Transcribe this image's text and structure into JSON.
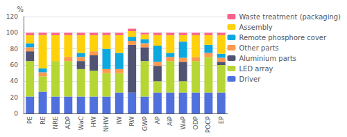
{
  "chart_data": {
    "type": "bar",
    "stacked": true,
    "categories": [
      "PE",
      "RE",
      "NRE",
      "ADP",
      "WaC",
      "HW",
      "NHW",
      "IW",
      "RW",
      "GWP",
      "AP",
      "AiP",
      "WaP",
      "ODP",
      "POCP",
      "EP"
    ],
    "series": [
      {
        "name": "Driver",
        "values": [
          21,
          27,
          21,
          21,
          21,
          21,
          21,
          26,
          26,
          21,
          26,
          26,
          26,
          26,
          26,
          26
        ]
      },
      {
        "name": "LED array",
        "values": [
          44,
          19,
          44,
          44,
          34,
          32,
          29,
          24,
          0,
          44,
          14,
          39,
          14,
          39,
          44,
          34
        ]
      },
      {
        "name": "Aluminium parts",
        "values": [
          12,
          0,
          0,
          0,
          10,
          19,
          0,
          0,
          59,
          17,
          19,
          0,
          24,
          0,
          0,
          4
        ]
      },
      {
        "name": "Other parts",
        "values": [
          5,
          5,
          0,
          5,
          5,
          5,
          5,
          5,
          5,
          5,
          5,
          5,
          5,
          5,
          5,
          5
        ]
      },
      {
        "name": "Remote phosphore cover",
        "values": [
          5,
          5,
          0,
          0,
          5,
          0,
          25,
          20,
          5,
          5,
          20,
          5,
          20,
          0,
          10,
          5
        ]
      },
      {
        "name": "Assembly",
        "values": [
          10,
          41,
          32,
          27,
          22,
          20,
          17,
          22,
          7,
          6,
          13,
          22,
          8,
          27,
          12,
          23
        ]
      },
      {
        "name": "Waste treatment (packaging)",
        "values": [
          3,
          3,
          3,
          3,
          3,
          3,
          3,
          3,
          3,
          2,
          3,
          3,
          3,
          3,
          3,
          3
        ]
      }
    ],
    "ylabel": "%",
    "ylim": [
      0,
      120
    ],
    "yticks": [
      0,
      20,
      40,
      60,
      80,
      100,
      120
    ],
    "grid": true,
    "legend": "right"
  }
}
